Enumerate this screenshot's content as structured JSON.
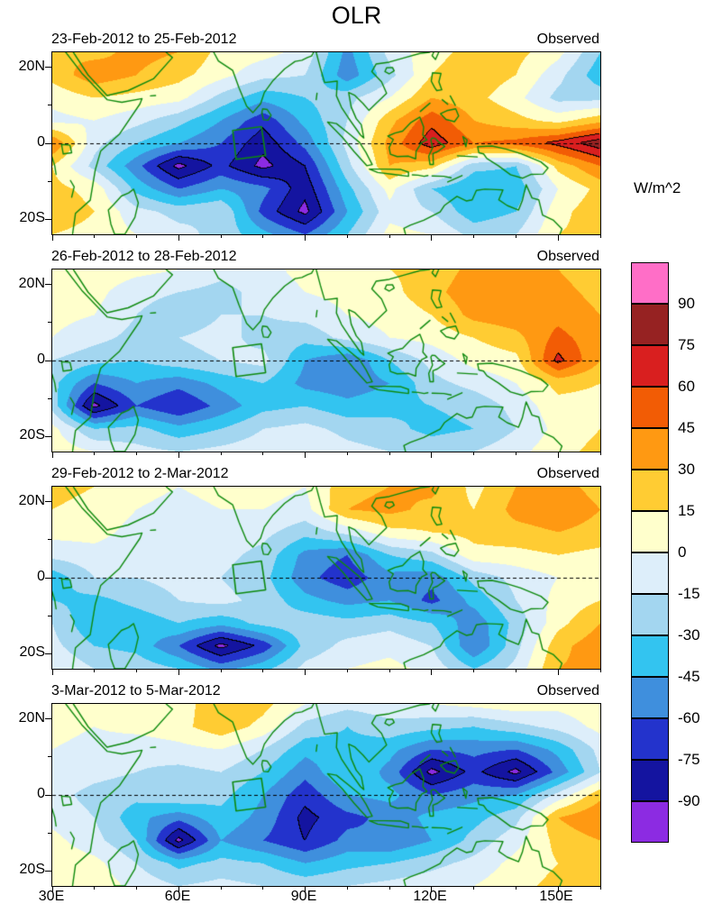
{
  "title": "OLR",
  "map": {
    "coast_color": "#0e8a0e",
    "equator_line": "dashed",
    "background_color": "#ffffcc"
  },
  "axes": {
    "x_tick_labels": [
      "30E",
      "60E",
      "90E",
      "120E",
      "150E"
    ],
    "y_tick_labels": [
      "20N",
      "0",
      "20S"
    ],
    "lon_min": 30,
    "lon_max": 160,
    "lat_min": -24,
    "lat_max": 24
  },
  "colorbar": {
    "label": "W/m^2",
    "tick_labels": [
      "90",
      "75",
      "60",
      "45",
      "30",
      "15",
      "0",
      "-15",
      "-30",
      "-45",
      "-60",
      "-75",
      "-90"
    ],
    "colors_low_to_high": [
      "#8c2be2",
      "#1414a0",
      "#2333cc",
      "#3f8fdd",
      "#33c4f0",
      "#a3d6f0",
      "#ddeefa",
      "#ffffcc",
      "#ffcc33",
      "#ff9912",
      "#f25c05",
      "#d91f1f",
      "#962222",
      "#ff6ec7"
    ]
  },
  "chart_data": {
    "type": "heatmap",
    "title": "OLR",
    "units": "W/m^2",
    "levels": [
      -90,
      -75,
      -60,
      -45,
      -30,
      -15,
      0,
      15,
      30,
      45,
      60,
      75,
      90
    ],
    "lons": [
      30,
      40,
      50,
      60,
      70,
      80,
      90,
      100,
      110,
      120,
      130,
      140,
      150,
      160
    ],
    "lats": [
      24,
      18,
      12,
      6,
      0,
      -6,
      -12,
      -18,
      -24
    ],
    "region_box_points": [
      [
        72.8,
        3.4
      ],
      [
        79.6,
        4.4
      ],
      [
        80.6,
        -3.2
      ],
      [
        73.6,
        -4.2
      ]
    ],
    "panels": [
      {
        "date_range": "23-Feb-2012 to 25-Feb-2012",
        "source": "Observed",
        "values": [
          [
            30,
            25,
            35,
            30,
            10,
            5,
            -5,
            -50,
            -10,
            10,
            20,
            20,
            5,
            -30
          ],
          [
            20,
            40,
            30,
            20,
            5,
            -10,
            -15,
            -55,
            -20,
            15,
            25,
            15,
            -10,
            -40
          ],
          [
            5,
            15,
            10,
            5,
            -20,
            -40,
            -30,
            -20,
            0,
            30,
            20,
            5,
            -20,
            -20
          ],
          [
            -5,
            0,
            -10,
            -25,
            -45,
            -70,
            -40,
            -15,
            25,
            55,
            30,
            20,
            10,
            25
          ],
          [
            45,
            -10,
            -30,
            -45,
            -60,
            -85,
            -55,
            -10,
            35,
            70,
            45,
            50,
            65,
            85
          ],
          [
            15,
            -20,
            -55,
            -95,
            -70,
            -95,
            -75,
            -20,
            30,
            20,
            -25,
            -30,
            20,
            45
          ],
          [
            20,
            10,
            -35,
            -60,
            -45,
            -55,
            -85,
            -35,
            5,
            -30,
            -45,
            -40,
            0,
            20
          ],
          [
            25,
            15,
            -10,
            -20,
            -15,
            -65,
            -95,
            -45,
            -5,
            -15,
            -40,
            -30,
            10,
            25
          ],
          [
            15,
            10,
            0,
            -10,
            -20,
            -40,
            -60,
            -30,
            5,
            0,
            -20,
            -15,
            15,
            20
          ]
        ]
      },
      {
        "date_range": "26-Feb-2012 to 28-Feb-2012",
        "source": "Observed",
        "values": [
          [
            15,
            10,
            5,
            0,
            -10,
            -5,
            5,
            10,
            15,
            20,
            35,
            40,
            30,
            20
          ],
          [
            10,
            5,
            -10,
            -15,
            -20,
            -10,
            0,
            5,
            10,
            25,
            40,
            45,
            35,
            25
          ],
          [
            5,
            0,
            -15,
            -25,
            -15,
            -15,
            -10,
            0,
            5,
            15,
            35,
            40,
            40,
            30
          ],
          [
            0,
            -10,
            -20,
            -15,
            -10,
            -20,
            -25,
            -10,
            0,
            5,
            15,
            25,
            50,
            35
          ],
          [
            -15,
            -25,
            -30,
            -20,
            -15,
            -10,
            -45,
            -60,
            -30,
            -10,
            5,
            10,
            65,
            30
          ],
          [
            -25,
            -60,
            -45,
            -55,
            -40,
            -30,
            -50,
            -55,
            -45,
            -20,
            -10,
            0,
            20,
            15
          ],
          [
            -20,
            -95,
            -60,
            -75,
            -55,
            -35,
            -30,
            -40,
            -35,
            -30,
            -25,
            -10,
            10,
            10
          ],
          [
            5,
            -30,
            -25,
            -40,
            -30,
            -15,
            -10,
            -20,
            -25,
            -35,
            -30,
            -15,
            5,
            15
          ],
          [
            10,
            0,
            -10,
            -15,
            -10,
            -5,
            0,
            -10,
            -15,
            -20,
            -15,
            -5,
            10,
            20
          ]
        ]
      },
      {
        "date_range": "29-Feb-2012 to 2-Mar-2012",
        "source": "Observed",
        "values": [
          [
            20,
            15,
            5,
            0,
            5,
            5,
            0,
            25,
            30,
            35,
            10,
            30,
            35,
            25
          ],
          [
            15,
            10,
            0,
            -5,
            0,
            0,
            -5,
            30,
            35,
            25,
            15,
            35,
            40,
            30
          ],
          [
            5,
            5,
            -5,
            -10,
            -5,
            -10,
            -25,
            -10,
            10,
            15,
            20,
            25,
            30,
            25
          ],
          [
            -10,
            -5,
            -10,
            -15,
            -10,
            -20,
            -50,
            -60,
            -30,
            -20,
            10,
            10,
            15,
            10
          ],
          [
            -40,
            -15,
            -15,
            -10,
            -15,
            -25,
            -55,
            -70,
            -50,
            -55,
            -25,
            -10,
            0,
            10
          ],
          [
            -30,
            -35,
            -25,
            -15,
            -10,
            -20,
            -40,
            -50,
            -45,
            -65,
            -40,
            -15,
            5,
            15
          ],
          [
            -15,
            -45,
            -40,
            -30,
            -40,
            -25,
            -20,
            -25,
            -20,
            -30,
            -55,
            -25,
            10,
            30
          ],
          [
            -10,
            -30,
            -35,
            -60,
            -95,
            -70,
            -25,
            -10,
            -5,
            -15,
            -60,
            -20,
            25,
            40
          ],
          [
            0,
            -15,
            -20,
            -30,
            -50,
            -35,
            -10,
            0,
            5,
            -5,
            -30,
            -10,
            30,
            35
          ]
        ]
      },
      {
        "date_range": "3-Mar-2012 to 5-Mar-2012",
        "source": "Observed",
        "values": [
          [
            10,
            5,
            10,
            5,
            30,
            20,
            0,
            -10,
            -5,
            0,
            5,
            10,
            5,
            10
          ],
          [
            5,
            0,
            5,
            10,
            25,
            10,
            -20,
            -30,
            -20,
            -25,
            -30,
            -20,
            -10,
            5
          ],
          [
            0,
            -5,
            -10,
            -5,
            0,
            -15,
            -40,
            -35,
            -40,
            -60,
            -55,
            -60,
            -40,
            -10
          ],
          [
            -5,
            -10,
            -15,
            -20,
            -15,
            -30,
            -55,
            -30,
            -50,
            -95,
            -70,
            -95,
            -55,
            -15
          ],
          [
            -10,
            -20,
            -25,
            -15,
            -25,
            -45,
            -70,
            -45,
            -40,
            -60,
            -50,
            -45,
            -10,
            25
          ],
          [
            -5,
            -15,
            -40,
            -55,
            -35,
            -50,
            -80,
            -65,
            -55,
            -40,
            -35,
            -20,
            30,
            45
          ],
          [
            5,
            -10,
            -30,
            -95,
            -45,
            -60,
            -75,
            -55,
            -60,
            -45,
            -25,
            -5,
            20,
            30
          ],
          [
            10,
            5,
            -15,
            -35,
            -25,
            -30,
            -45,
            -35,
            -30,
            -20,
            -10,
            5,
            15,
            25
          ],
          [
            15,
            10,
            -5,
            -15,
            -10,
            -15,
            -20,
            -15,
            -10,
            -5,
            0,
            10,
            20,
            15
          ]
        ]
      }
    ]
  }
}
